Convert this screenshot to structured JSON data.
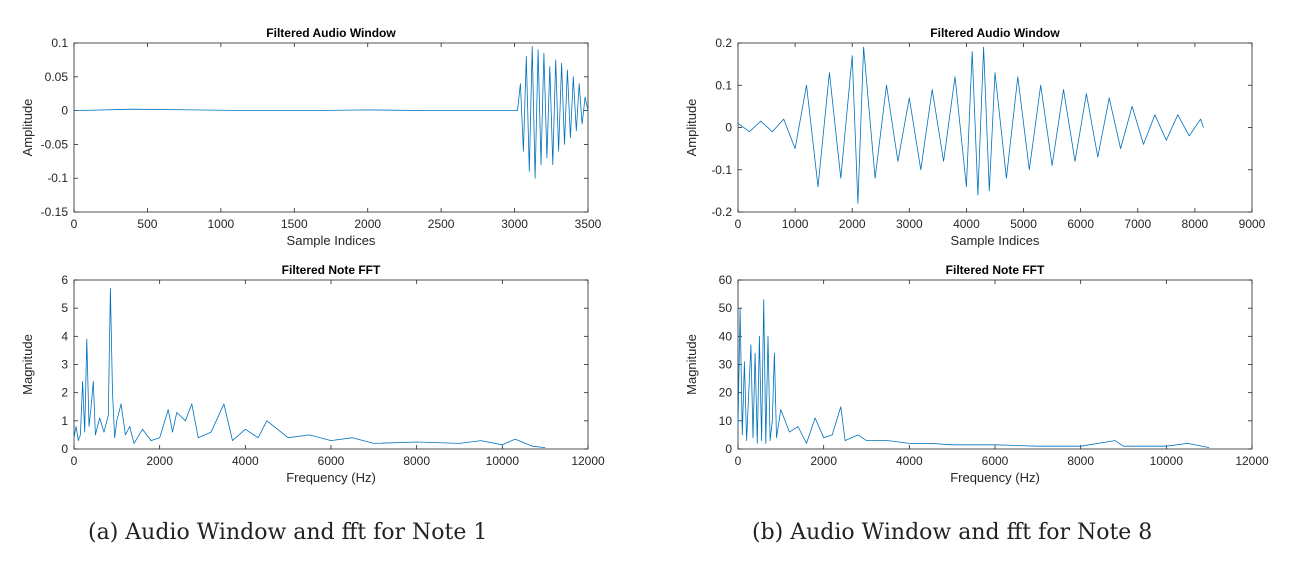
{
  "chart_data": [
    {
      "type": "line",
      "title": "Filtered Audio Window",
      "xlabel": "Sample Indices",
      "ylabel": "Amplitude",
      "xlim": [
        0,
        3500
      ],
      "ylim": [
        -0.15,
        0.1
      ],
      "xticks": [
        "0",
        "500",
        "1000",
        "1500",
        "2000",
        "2500",
        "3000",
        "3500"
      ],
      "yticks": [
        "-0.15",
        "-0.1",
        "-0.05",
        "0",
        "0.05",
        "0.1"
      ],
      "color": "#0072BD",
      "x": [
        0,
        400,
        800,
        1200,
        1600,
        2000,
        2400,
        2800,
        3020,
        3040,
        3060,
        3080,
        3100,
        3120,
        3140,
        3160,
        3180,
        3200,
        3220,
        3240,
        3260,
        3280,
        3300,
        3320,
        3340,
        3360,
        3380,
        3400,
        3420,
        3440,
        3460,
        3480,
        3500
      ],
      "y": [
        0,
        0.002,
        0.001,
        0,
        0,
        0.001,
        0,
        0,
        0,
        0.04,
        -0.06,
        0.08,
        -0.09,
        0.095,
        -0.1,
        0.09,
        -0.08,
        0.085,
        -0.07,
        0.065,
        -0.08,
        0.075,
        -0.06,
        0.07,
        -0.05,
        0.06,
        -0.04,
        0.05,
        -0.03,
        0.04,
        -0.02,
        0.02,
        0
      ]
    },
    {
      "type": "line",
      "title": "Filtered Note FFT",
      "xlabel": "Frequency (Hz)",
      "ylabel": "Magnitude",
      "xlim": [
        0,
        12000
      ],
      "ylim": [
        0,
        6
      ],
      "xticks": [
        "0",
        "2000",
        "4000",
        "6000",
        "8000",
        "10000",
        "12000"
      ],
      "yticks": [
        "0",
        "1",
        "2",
        "3",
        "4",
        "5",
        "6"
      ],
      "color": "#0072BD",
      "x": [
        0,
        50,
        100,
        150,
        200,
        250,
        300,
        350,
        400,
        450,
        500,
        600,
        700,
        800,
        850,
        900,
        950,
        1000,
        1100,
        1200,
        1300,
        1400,
        1600,
        1800,
        2000,
        2200,
        2300,
        2400,
        2600,
        2750,
        2900,
        3200,
        3500,
        3700,
        4000,
        4300,
        4500,
        5000,
        5500,
        6000,
        6500,
        7000,
        8000,
        9000,
        9500,
        10000,
        10300,
        10700,
        11000
      ],
      "y": [
        0.4,
        0.8,
        0.3,
        0.5,
        2.4,
        0.6,
        3.9,
        0.8,
        1.5,
        2.4,
        0.5,
        1.1,
        0.6,
        1.2,
        5.7,
        2.0,
        0.4,
        1.0,
        1.6,
        0.5,
        0.8,
        0.2,
        0.7,
        0.3,
        0.4,
        1.4,
        0.6,
        1.3,
        1.0,
        1.6,
        0.4,
        0.6,
        1.6,
        0.3,
        0.7,
        0.4,
        1.0,
        0.4,
        0.5,
        0.3,
        0.4,
        0.2,
        0.25,
        0.2,
        0.3,
        0.15,
        0.35,
        0.1,
        0.05
      ]
    },
    {
      "type": "line",
      "title": "Filtered Audio Window",
      "xlabel": "Sample Indices",
      "ylabel": "Amplitude",
      "xlim": [
        0,
        9000
      ],
      "ylim": [
        -0.2,
        0.2
      ],
      "xticks": [
        "0",
        "1000",
        "2000",
        "3000",
        "4000",
        "5000",
        "6000",
        "7000",
        "8000",
        "9000"
      ],
      "yticks": [
        "-0.2",
        "-0.1",
        "0",
        "0.1",
        "0.2"
      ],
      "color": "#0072BD",
      "x": [
        0,
        200,
        400,
        600,
        800,
        1000,
        1200,
        1400,
        1600,
        1800,
        2000,
        2100,
        2200,
        2400,
        2600,
        2800,
        3000,
        3200,
        3400,
        3600,
        3800,
        4000,
        4100,
        4200,
        4300,
        4400,
        4500,
        4700,
        4900,
        5100,
        5300,
        5500,
        5700,
        5900,
        6100,
        6300,
        6500,
        6700,
        6900,
        7100,
        7300,
        7500,
        7700,
        7900,
        8100,
        8150
      ],
      "y": [
        0.01,
        -0.01,
        0.015,
        -0.01,
        0.02,
        -0.05,
        0.1,
        -0.14,
        0.13,
        -0.12,
        0.17,
        -0.18,
        0.19,
        -0.12,
        0.1,
        -0.08,
        0.07,
        -0.1,
        0.09,
        -0.08,
        0.12,
        -0.14,
        0.18,
        -0.16,
        0.19,
        -0.15,
        0.13,
        -0.12,
        0.12,
        -0.1,
        0.1,
        -0.09,
        0.09,
        -0.08,
        0.08,
        -0.07,
        0.07,
        -0.05,
        0.05,
        -0.04,
        0.03,
        -0.03,
        0.03,
        -0.02,
        0.02,
        0
      ]
    },
    {
      "type": "line",
      "title": "Filtered Note FFT",
      "xlabel": "Frequency (Hz)",
      "ylabel": "Magnitude",
      "xlim": [
        0,
        12000
      ],
      "ylim": [
        0,
        60
      ],
      "xticks": [
        "0",
        "2000",
        "4000",
        "6000",
        "8000",
        "10000",
        "12000"
      ],
      "yticks": [
        "0",
        "10",
        "20",
        "30",
        "40",
        "50",
        "60"
      ],
      "color": "#0072BD",
      "x": [
        0,
        50,
        100,
        150,
        200,
        300,
        350,
        400,
        450,
        500,
        550,
        600,
        650,
        700,
        750,
        800,
        850,
        900,
        1000,
        1200,
        1400,
        1600,
        1800,
        2000,
        2200,
        2400,
        2500,
        2800,
        3000,
        3500,
        4000,
        4500,
        5000,
        6000,
        7000,
        8000,
        8800,
        9000,
        10000,
        10500,
        11000
      ],
      "y": [
        8,
        50,
        5,
        31,
        3,
        37,
        4,
        34,
        2,
        40,
        3,
        53,
        2,
        40,
        3,
        10,
        34,
        4,
        14,
        6,
        8,
        2,
        11,
        4,
        5,
        15,
        3,
        5,
        3,
        3,
        2,
        2,
        1.5,
        1.5,
        1,
        1,
        3,
        1,
        1,
        2,
        0.5
      ]
    }
  ],
  "captions": {
    "a": "(a) Audio Window and fft for Note 1",
    "b": "(b) Audio Window and fft for Note 8"
  }
}
